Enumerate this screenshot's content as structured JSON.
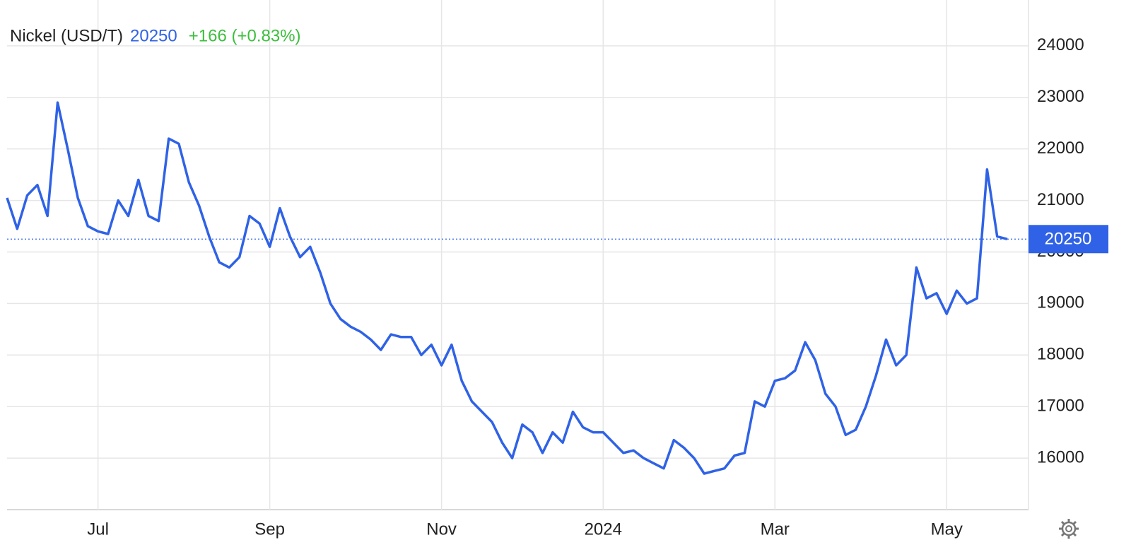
{
  "chart_data": {
    "type": "line",
    "title": "Nickel (USD/T)",
    "last": 20250,
    "change": "+166 (+0.83%)",
    "categories": [
      null,
      null,
      null,
      null,
      null,
      null,
      null,
      null,
      null,
      "Jul",
      null,
      null,
      null,
      null,
      null,
      null,
      null,
      null,
      null,
      null,
      null,
      null,
      null,
      null,
      null,
      null,
      "Sep",
      null,
      null,
      null,
      null,
      null,
      null,
      null,
      null,
      null,
      null,
      null,
      null,
      null,
      null,
      null,
      null,
      "Nov",
      null,
      null,
      null,
      null,
      null,
      null,
      null,
      null,
      null,
      null,
      null,
      null,
      null,
      null,
      null,
      "2024",
      null,
      null,
      null,
      null,
      null,
      null,
      null,
      null,
      null,
      null,
      null,
      null,
      null,
      null,
      null,
      null,
      "Mar",
      null,
      null,
      null,
      null,
      null,
      null,
      null,
      null,
      null,
      null,
      null,
      null,
      null,
      null,
      null,
      null,
      "May",
      null,
      null,
      null,
      null,
      null,
      null
    ],
    "series": [
      {
        "name": "Nickel",
        "color": "#2f62e6",
        "values": [
          21050,
          20450,
          21100,
          21300,
          20700,
          22900,
          22000,
          21050,
          20500,
          20400,
          20350,
          21000,
          20700,
          21400,
          20700,
          20600,
          22200,
          22100,
          21350,
          20900,
          20300,
          19800,
          19700,
          19900,
          20700,
          20550,
          20100,
          20850,
          20300,
          19900,
          20100,
          19600,
          19000,
          18700,
          18550,
          18450,
          18300,
          18100,
          18400,
          18350,
          18350,
          18000,
          18200,
          17800,
          18200,
          17500,
          17100,
          16900,
          16700,
          16300,
          16000,
          16650,
          16500,
          16100,
          16500,
          16300,
          16900,
          16600,
          16500,
          16500,
          16300,
          16100,
          16150,
          16000,
          15900,
          15800,
          16350,
          16200,
          16000,
          15700,
          15750,
          15800,
          16050,
          16100,
          17100,
          17000,
          17500,
          17550,
          17700,
          18250,
          17900,
          17250,
          17000,
          16450,
          16550,
          17000,
          17600,
          18300,
          17800,
          18000,
          19700,
          19100,
          19200,
          18800,
          19250,
          19000,
          19100,
          21600,
          20300,
          20250
        ]
      }
    ],
    "ylim": [
      15000,
      24890
    ],
    "yticks": [
      16000,
      17000,
      18000,
      19000,
      20000,
      21000,
      22000,
      23000,
      24000
    ],
    "grid": true
  }
}
